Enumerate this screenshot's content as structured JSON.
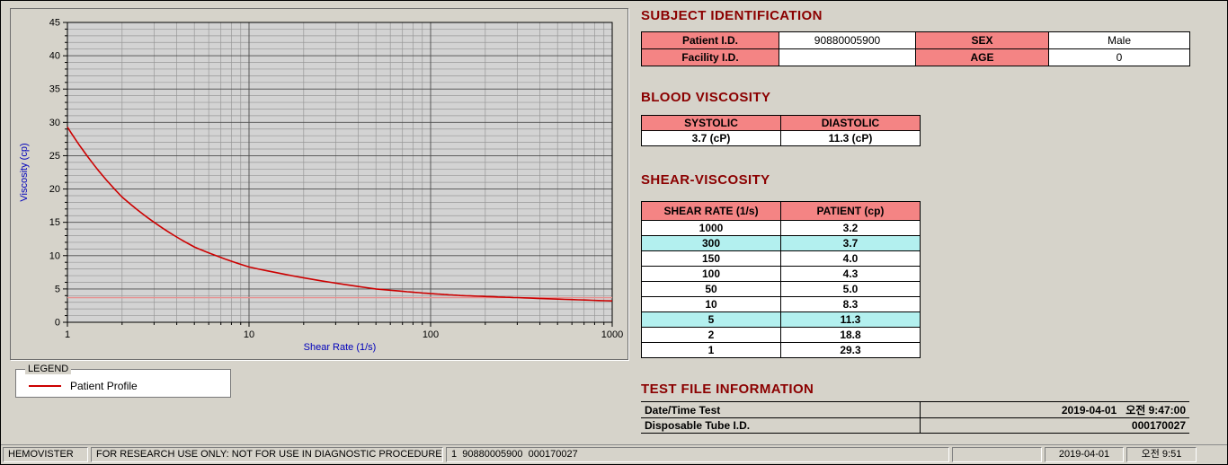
{
  "colors": {
    "window_bg": "#d6d3ca",
    "heading": "#8b0000",
    "table_header_bg": "#f48484",
    "highlight_bg": "#b3f0ef",
    "line": "#cc0000",
    "axis_label": "#0000bb"
  },
  "chart_data": {
    "type": "line",
    "x_scale": "log",
    "x": [
      1,
      2,
      5,
      10,
      50,
      100,
      150,
      300,
      1000
    ],
    "series": [
      {
        "name": "Patient Profile",
        "values": [
          29.3,
          18.8,
          11.3,
          8.3,
          5.0,
          4.3,
          4.0,
          3.7,
          3.2
        ],
        "color": "#cc0000"
      }
    ],
    "reference_line": {
      "value": 3.7,
      "color": "#e89090"
    },
    "title": "",
    "xlabel": "Shear Rate (1/s)",
    "ylabel": "Viscosity (cp)",
    "xlim": [
      1,
      1000
    ],
    "ylim": [
      0,
      45
    ],
    "x_ticks": [
      1,
      10,
      100,
      1000
    ],
    "y_ticks": [
      0,
      5,
      10,
      15,
      20,
      25,
      30,
      35,
      40,
      45
    ],
    "grid": "on",
    "legend_position": "separate-box-below"
  },
  "legend": {
    "title": "LEGEND",
    "items": [
      {
        "label": "Patient Profile",
        "color": "#cc0000"
      }
    ]
  },
  "subject": {
    "title": "SUBJECT IDENTIFICATION",
    "rows": [
      {
        "label1": "Patient I.D.",
        "value1": "90880005900",
        "label2": "SEX",
        "value2": "Male"
      },
      {
        "label1": "Facility I.D.",
        "value1": "",
        "label2": "AGE",
        "value2": "0"
      }
    ]
  },
  "blood_viscosity": {
    "title": "BLOOD VISCOSITY",
    "headers": [
      "SYSTOLIC",
      "DIASTOLIC"
    ],
    "values": [
      "3.7 (cP)",
      "11.3 (cP)"
    ]
  },
  "shear_viscosity": {
    "title": "SHEAR-VISCOSITY",
    "headers": [
      "SHEAR RATE (1/s)",
      "PATIENT (cp)"
    ],
    "rows": [
      {
        "rate": "1000",
        "value": "3.2",
        "highlight": false
      },
      {
        "rate": "300",
        "value": "3.7",
        "highlight": true
      },
      {
        "rate": "150",
        "value": "4.0",
        "highlight": false
      },
      {
        "rate": "100",
        "value": "4.3",
        "highlight": false
      },
      {
        "rate": "50",
        "value": "5.0",
        "highlight": false
      },
      {
        "rate": "10",
        "value": "8.3",
        "highlight": false
      },
      {
        "rate": "5",
        "value": "11.3",
        "highlight": true
      },
      {
        "rate": "2",
        "value": "18.8",
        "highlight": false
      },
      {
        "rate": "1",
        "value": "29.3",
        "highlight": false
      }
    ]
  },
  "test_file": {
    "title": "TEST FILE INFORMATION",
    "rows": [
      {
        "label": "Date/Time Test",
        "value": "2019-04-01   오전 9:47:00"
      },
      {
        "label": "Disposable Tube I.D.",
        "value": "000170027"
      }
    ]
  },
  "status_bar": {
    "app_name": "HEMOVISTER",
    "notice": "FOR RESEARCH USE ONLY: NOT FOR USE IN DIAGNOSTIC PROCEDURES",
    "record": "1  90880005900  000170027",
    "empty": "",
    "date": "2019-04-01",
    "time": "오전 9:51"
  }
}
